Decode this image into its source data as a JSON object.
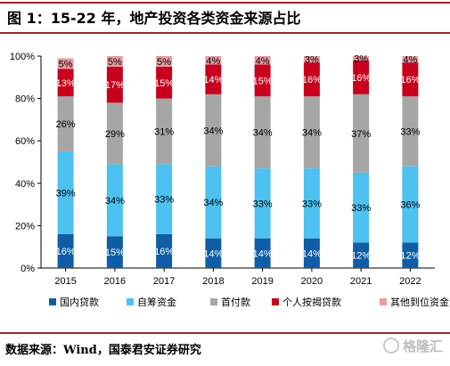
{
  "header": {
    "title": "图 1：15-22 年，地产投资各类资金来源占比"
  },
  "footer": {
    "source": "数据来源：Wind，国泰君安证券研究",
    "watermark_text": "格隆汇"
  },
  "chart_data": {
    "type": "bar",
    "stacked": true,
    "categories": [
      "2015",
      "2016",
      "2017",
      "2018",
      "2019",
      "2020",
      "2021",
      "2022"
    ],
    "y_ticks": [
      "0%",
      "20%",
      "40%",
      "60%",
      "80%",
      "100%"
    ],
    "ylim": [
      0,
      100
    ],
    "grid": false,
    "legend_position": "bottom",
    "series": [
      {
        "name": "国内贷款",
        "color": "#0f5da6",
        "label_color": "#ffffff",
        "values": [
          16,
          15,
          16,
          14,
          14,
          14,
          12,
          12
        ],
        "labels": [
          "16%",
          "15%",
          "16%",
          "14%",
          "14%",
          "14%",
          "12%",
          "12%"
        ]
      },
      {
        "name": "自筹资金",
        "color": "#4dc1f0",
        "label_color": "#000000",
        "values": [
          39,
          34,
          33,
          34,
          33,
          33,
          33,
          36
        ],
        "labels": [
          "39%",
          "34%",
          "33%",
          "34%",
          "33%",
          "33%",
          "33%",
          "36%"
        ]
      },
      {
        "name": "首付款",
        "color": "#a6a6a6",
        "label_color": "#000000",
        "values": [
          26,
          29,
          31,
          34,
          34,
          34,
          37,
          33
        ],
        "labels": [
          "26%",
          "29%",
          "31%",
          "34%",
          "34%",
          "34%",
          "37%",
          "33%"
        ]
      },
      {
        "name": "个人按揭贷款",
        "color": "#c8001e",
        "label_color": "#ffffff",
        "values": [
          13,
          17,
          15,
          14,
          15,
          16,
          16,
          16
        ],
        "labels": [
          "13%",
          "17%",
          "15%",
          "14%",
          "15%",
          "16%",
          "16%",
          "16%"
        ]
      },
      {
        "name": "其他到位资金",
        "color": "#e89ca1",
        "label_color": "#000000",
        "values": [
          5,
          5,
          5,
          4,
          4,
          3,
          3,
          4
        ],
        "labels": [
          "5%",
          "5%",
          "5%",
          "4%",
          "4%",
          "3%",
          "3%",
          "4%"
        ]
      }
    ]
  }
}
